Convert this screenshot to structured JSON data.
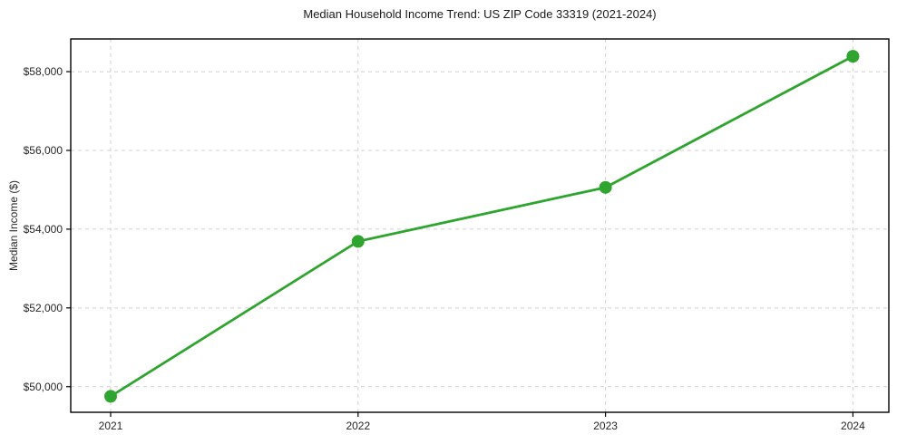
{
  "title": "Median Household Income Trend: US ZIP Code 33319 (2021-2024)",
  "chart_data": {
    "type": "line",
    "title": "Median Household Income Trend: US ZIP Code 33319 (2021-2024)",
    "xlabel": "",
    "ylabel": "Median Income ($)",
    "categories": [
      "2021",
      "2022",
      "2023",
      "2024"
    ],
    "x": [
      2021,
      2022,
      2023,
      2024
    ],
    "series": [
      {
        "name": "Median Household Income",
        "values": [
          49755,
          53690,
          55060,
          58390
        ]
      }
    ],
    "yticks": [
      50000,
      52000,
      54000,
      56000,
      58000
    ],
    "ytick_labels": [
      "$50,000",
      "$52,000",
      "$54,000",
      "$56,000",
      "$58,000"
    ],
    "ylim": [
      49350,
      58830
    ],
    "grid": true,
    "grid_style": "dashed",
    "legend_position": "none",
    "line_color": "#2fa42f",
    "marker_color": "#2fa42f",
    "grid_color": "#cfcfcf",
    "border_color": "#000000",
    "text_color": "#262626"
  }
}
